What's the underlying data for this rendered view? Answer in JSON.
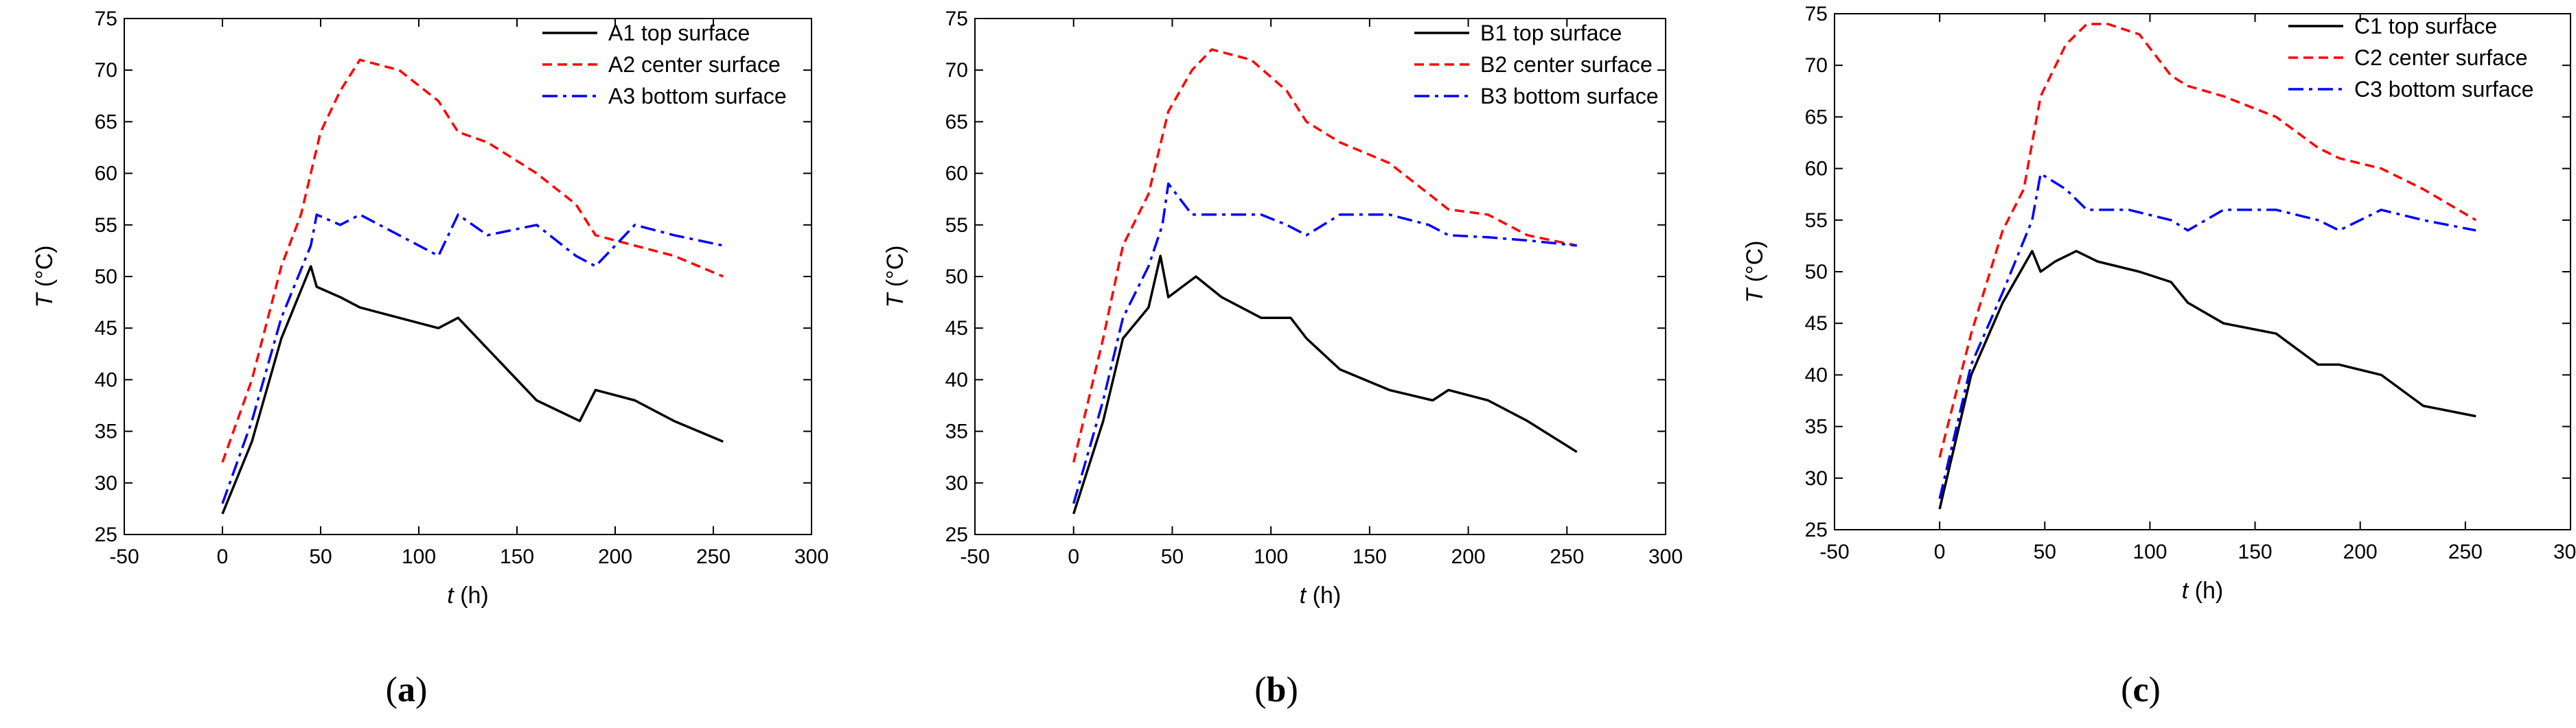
{
  "chart_data": [
    {
      "type": "line",
      "panel_label": "a",
      "xlabel": "t",
      "xlabel_unit": "(h)",
      "ylabel": "T",
      "ylabel_unit": "(°C)",
      "xlim": [
        -50,
        300
      ],
      "ylim": [
        25,
        75
      ],
      "xticks": [
        -50,
        0,
        50,
        100,
        150,
        200,
        250,
        300
      ],
      "yticks": [
        25,
        30,
        35,
        40,
        45,
        50,
        55,
        60,
        65,
        70,
        75
      ],
      "legend_position": "top-right",
      "series": [
        {
          "name": "A1 top surface",
          "style": "solid",
          "color": "#000000",
          "x": [
            0,
            15,
            30,
            45,
            48,
            60,
            70,
            90,
            110,
            120,
            135,
            160,
            182,
            190,
            210,
            230,
            255
          ],
          "y": [
            27,
            34,
            44,
            51,
            49,
            48,
            47,
            46,
            45,
            46,
            43,
            38,
            36,
            39,
            38,
            36,
            34
          ]
        },
        {
          "name": "A2 center surface",
          "style": "dashed",
          "color": "#ff0000",
          "x": [
            0,
            15,
            30,
            40,
            50,
            60,
            70,
            90,
            110,
            120,
            135,
            160,
            180,
            190,
            210,
            230,
            255
          ],
          "y": [
            32,
            40,
            51,
            56,
            64,
            68,
            71,
            70,
            67,
            64,
            63,
            60,
            57,
            54,
            53,
            52,
            50
          ]
        },
        {
          "name": "A3 bottom surface",
          "style": "dashdot",
          "color": "#0000ff",
          "x": [
            0,
            15,
            30,
            45,
            48,
            60,
            70,
            90,
            110,
            120,
            135,
            160,
            180,
            190,
            210,
            230,
            255
          ],
          "y": [
            28,
            36,
            46,
            53,
            56,
            55,
            56,
            54,
            52,
            56,
            54,
            55,
            52,
            51,
            55,
            54,
            53
          ]
        }
      ]
    },
    {
      "type": "line",
      "panel_label": "b",
      "xlabel": "t",
      "xlabel_unit": "(h)",
      "ylabel": "T",
      "ylabel_unit": "(°C)",
      "xlim": [
        -50,
        300
      ],
      "ylim": [
        25,
        75
      ],
      "xticks": [
        -50,
        0,
        50,
        100,
        150,
        200,
        250,
        300
      ],
      "yticks": [
        25,
        30,
        35,
        40,
        45,
        50,
        55,
        60,
        65,
        70,
        75
      ],
      "legend_position": "top-right",
      "series": [
        {
          "name": "B1 top surface",
          "style": "solid",
          "color": "#000000",
          "x": [
            0,
            15,
            25,
            38,
            44,
            48,
            62,
            75,
            95,
            110,
            118,
            135,
            160,
            182,
            190,
            210,
            230,
            255
          ],
          "y": [
            27,
            36,
            44,
            47,
            52,
            48,
            50,
            48,
            46,
            46,
            44,
            41,
            39,
            38,
            39,
            38,
            36,
            33
          ]
        },
        {
          "name": "B2 center surface",
          "style": "dashed",
          "color": "#ff0000",
          "x": [
            0,
            15,
            25,
            38,
            48,
            60,
            70,
            90,
            108,
            118,
            135,
            160,
            180,
            190,
            210,
            230,
            255
          ],
          "y": [
            32,
            44,
            53,
            58,
            66,
            70,
            72,
            71,
            68,
            65,
            63,
            61,
            58,
            56.5,
            56,
            54,
            53
          ]
        },
        {
          "name": "B3 bottom surface",
          "style": "dashdot",
          "color": "#0000ff",
          "x": [
            0,
            15,
            25,
            38,
            45,
            48,
            60,
            75,
            95,
            108,
            118,
            135,
            160,
            180,
            190,
            210,
            230,
            255
          ],
          "y": [
            28,
            38,
            46,
            51,
            55,
            59,
            56,
            56,
            56,
            55,
            54,
            56,
            56,
            55,
            54,
            53.8,
            53.5,
            53
          ]
        }
      ]
    },
    {
      "type": "line",
      "panel_label": "c",
      "xlabel": "t",
      "xlabel_unit": "(h)",
      "ylabel": "T",
      "ylabel_unit": "(°C)",
      "xlim": [
        -50,
        300
      ],
      "ylim": [
        25,
        75
      ],
      "xticks": [
        -50,
        0,
        50,
        100,
        150,
        200,
        250,
        300
      ],
      "yticks": [
        25,
        30,
        35,
        40,
        45,
        50,
        55,
        60,
        65,
        70,
        75
      ],
      "legend_position": "top-right",
      "series": [
        {
          "name": "C1 top surface",
          "style": "solid",
          "color": "#000000",
          "x": [
            0,
            15,
            30,
            44,
            48,
            55,
            65,
            75,
            95,
            110,
            118,
            135,
            160,
            180,
            190,
            210,
            230,
            255
          ],
          "y": [
            27,
            40,
            47,
            52,
            50,
            51,
            52,
            51,
            50,
            49,
            47,
            45,
            44,
            41,
            41,
            40,
            37,
            36
          ]
        },
        {
          "name": "C2 center surface",
          "style": "dashed",
          "color": "#ff0000",
          "x": [
            0,
            15,
            30,
            40,
            48,
            60,
            70,
            80,
            95,
            110,
            118,
            135,
            160,
            180,
            190,
            210,
            230,
            255
          ],
          "y": [
            32,
            44,
            54,
            58,
            67,
            72,
            74,
            74,
            73,
            69,
            68,
            67,
            65,
            62,
            61,
            60,
            58,
            55
          ]
        },
        {
          "name": "C3 bottom surface",
          "style": "dashdot",
          "color": "#0000ff",
          "x": [
            0,
            15,
            30,
            44,
            48,
            60,
            70,
            90,
            110,
            118,
            135,
            160,
            180,
            190,
            210,
            230,
            255
          ],
          "y": [
            28,
            41,
            48,
            55,
            59.5,
            58,
            56,
            56,
            55,
            54,
            56,
            56,
            55,
            54,
            56,
            55,
            54
          ]
        }
      ]
    }
  ]
}
